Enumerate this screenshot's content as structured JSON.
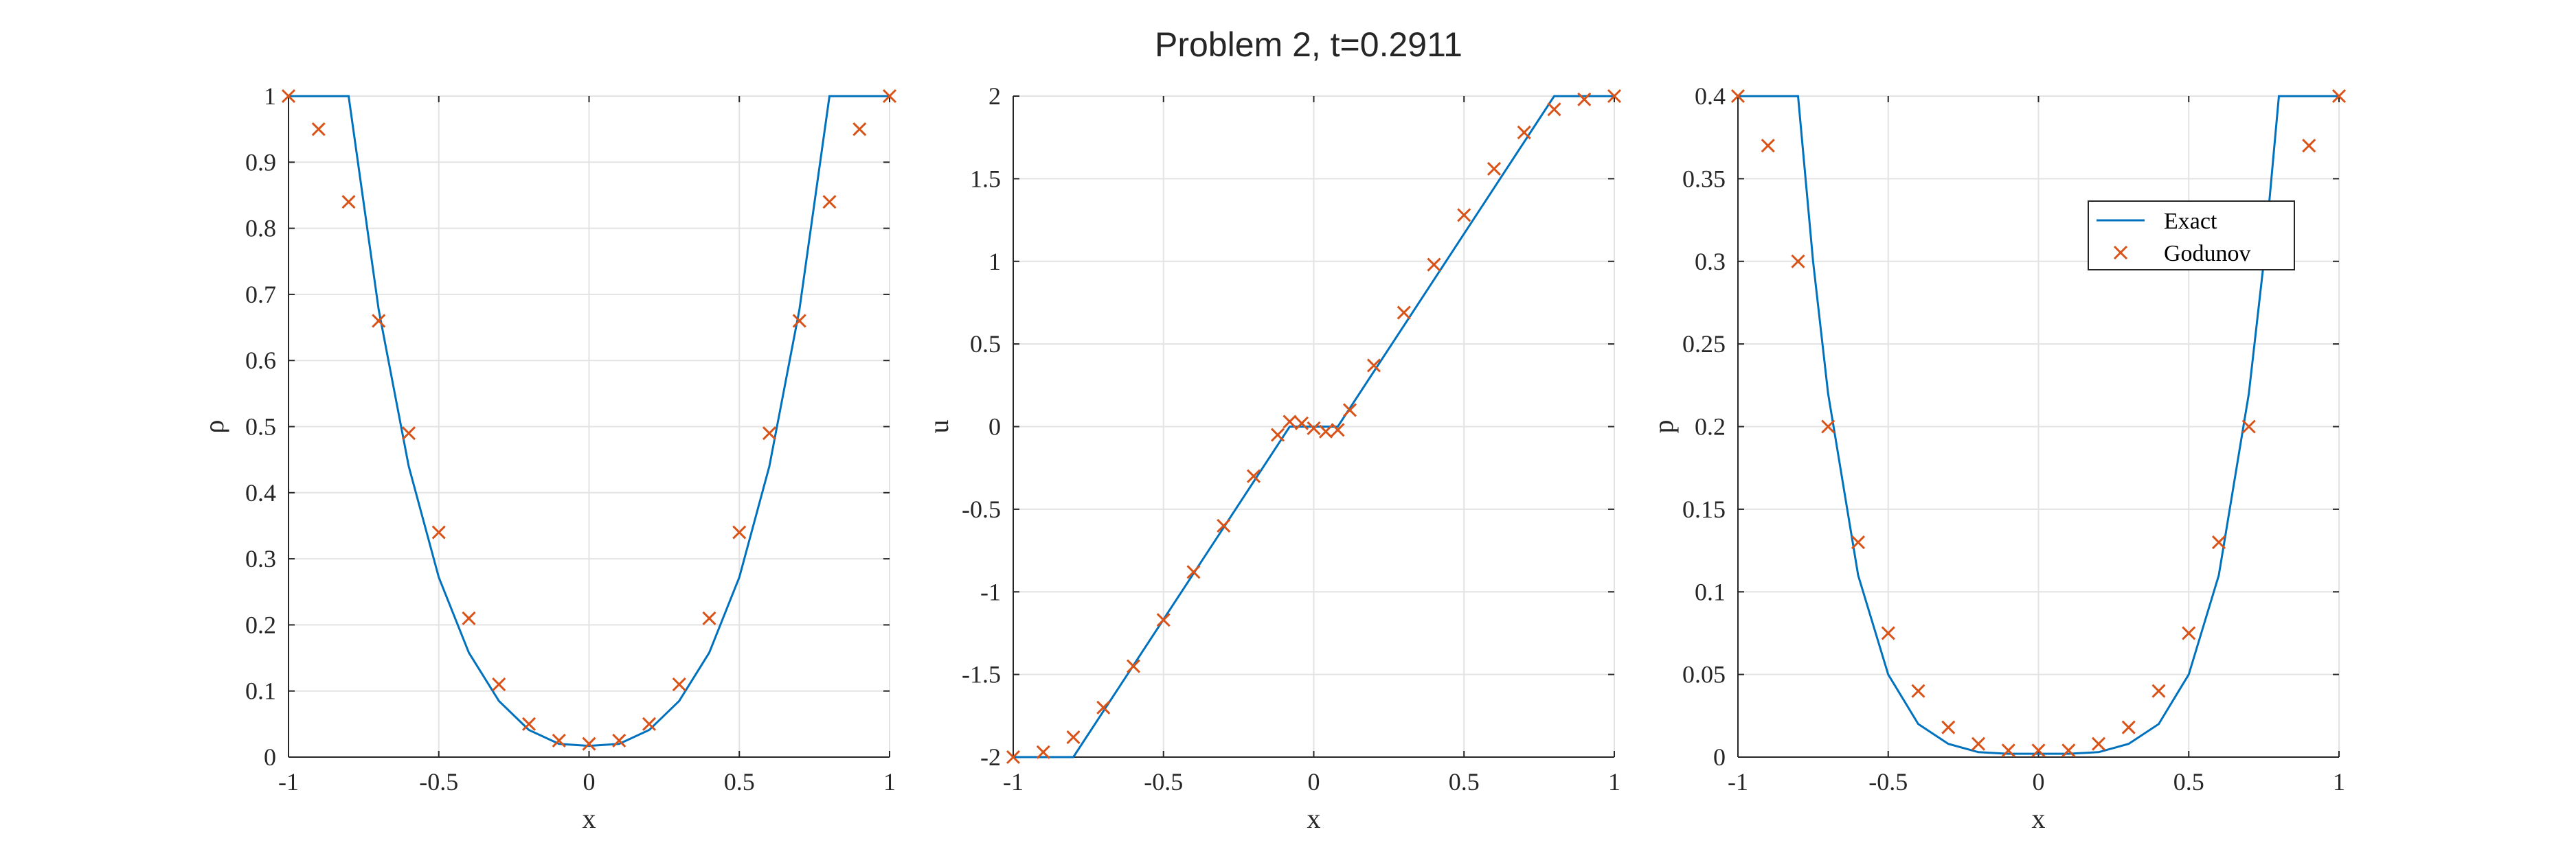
{
  "title": "Problem 2, t=0.2911",
  "colors": {
    "exact": "#0072bd",
    "godunov": "#d95319",
    "grid": "#e3e3e3",
    "axis": "#262626"
  },
  "legend": {
    "entries": [
      "Exact",
      "Godunov"
    ],
    "location": "top-right (third plot)"
  },
  "chart_data": [
    {
      "type": "line",
      "xlabel": "x",
      "ylabel": "ρ",
      "xlim": [
        -1,
        1
      ],
      "ylim": [
        0,
        1
      ],
      "xticks": [
        -1,
        -0.5,
        0,
        0.5,
        1
      ],
      "xtick_labels": [
        "-1",
        "-0.5",
        "0",
        "0.5",
        "1"
      ],
      "yticks": [
        0,
        0.1,
        0.2,
        0.3,
        0.4,
        0.5,
        0.6,
        0.7,
        0.8,
        0.9,
        1
      ],
      "ytick_labels": [
        "0",
        "0.1",
        "0.2",
        "0.3",
        "0.4",
        "0.5",
        "0.6",
        "0.7",
        "0.8",
        "0.9",
        "1"
      ],
      "grid": true,
      "legend": false,
      "series": [
        {
          "name": "Exact",
          "style": "line",
          "x": [
            -1,
            -0.8,
            -0.7,
            -0.6,
            -0.5,
            -0.4,
            -0.3,
            -0.2,
            -0.1,
            0,
            0.1,
            0.2,
            0.3,
            0.4,
            0.5,
            0.6,
            0.7,
            0.8,
            1
          ],
          "y": [
            1,
            1,
            0.677,
            0.44,
            0.272,
            0.158,
            0.085,
            0.041,
            0.02,
            0.017,
            0.02,
            0.041,
            0.085,
            0.158,
            0.272,
            0.44,
            0.677,
            1,
            1
          ]
        },
        {
          "name": "Godunov",
          "style": "marker-x",
          "x": [
            -1,
            -0.9,
            -0.8,
            -0.7,
            -0.6,
            -0.5,
            -0.4,
            -0.3,
            -0.2,
            -0.1,
            0,
            0.1,
            0.2,
            0.3,
            0.4,
            0.5,
            0.6,
            0.7,
            0.8,
            0.9,
            1
          ],
          "y": [
            1,
            0.95,
            0.84,
            0.66,
            0.49,
            0.34,
            0.21,
            0.11,
            0.05,
            0.025,
            0.02,
            0.025,
            0.05,
            0.11,
            0.21,
            0.34,
            0.49,
            0.66,
            0.84,
            0.95,
            1
          ]
        }
      ]
    },
    {
      "type": "line",
      "xlabel": "x",
      "ylabel": "u",
      "xlim": [
        -1,
        1
      ],
      "ylim": [
        -2,
        2
      ],
      "xticks": [
        -1,
        -0.5,
        0,
        0.5,
        1
      ],
      "xtick_labels": [
        "-1",
        "-0.5",
        "0",
        "0.5",
        "1"
      ],
      "yticks": [
        -2,
        -1.5,
        -1,
        -0.5,
        0,
        0.5,
        1,
        1.5,
        2
      ],
      "ytick_labels": [
        "-2",
        "-1.5",
        "-1",
        "-0.5",
        "0",
        "0.5",
        "1",
        "1.5",
        "2"
      ],
      "grid": true,
      "legend": false,
      "series": [
        {
          "name": "Exact",
          "style": "line",
          "x": [
            -1,
            -0.8,
            -0.08,
            0.08,
            0.8,
            1
          ],
          "y": [
            -2,
            -2,
            0,
            0,
            2,
            2
          ]
        },
        {
          "name": "Godunov",
          "style": "marker-x",
          "x": [
            -1,
            -0.9,
            -0.8,
            -0.7,
            -0.6,
            -0.5,
            -0.4,
            -0.3,
            -0.2,
            -0.12,
            -0.08,
            -0.04,
            0,
            0.04,
            0.08,
            0.12,
            0.2,
            0.3,
            0.4,
            0.5,
            0.6,
            0.7,
            0.8,
            0.9,
            1
          ],
          "y": [
            -2,
            -1.97,
            -1.88,
            -1.7,
            -1.45,
            -1.17,
            -0.88,
            -0.6,
            -0.3,
            -0.05,
            0.03,
            0.02,
            -0.01,
            -0.03,
            -0.02,
            0.1,
            0.37,
            0.69,
            0.98,
            1.28,
            1.56,
            1.78,
            1.92,
            1.98,
            2
          ]
        }
      ]
    },
    {
      "type": "line",
      "xlabel": "x",
      "ylabel": "p",
      "xlim": [
        -1,
        1
      ],
      "ylim": [
        0,
        0.4
      ],
      "xticks": [
        -1,
        -0.5,
        0,
        0.5,
        1
      ],
      "xtick_labels": [
        "-1",
        "-0.5",
        "0",
        "0.5",
        "1"
      ],
      "yticks": [
        0,
        0.05,
        0.1,
        0.15,
        0.2,
        0.25,
        0.3,
        0.35,
        0.4
      ],
      "ytick_labels": [
        "0",
        "0.05",
        "0.1",
        "0.15",
        "0.2",
        "0.25",
        "0.3",
        "0.35",
        "0.4"
      ],
      "grid": true,
      "legend": true,
      "series": [
        {
          "name": "Exact",
          "style": "line",
          "x": [
            -1,
            -0.8,
            -0.75,
            -0.7,
            -0.6,
            -0.5,
            -0.4,
            -0.3,
            -0.2,
            -0.1,
            0,
            0.1,
            0.2,
            0.3,
            0.4,
            0.5,
            0.6,
            0.7,
            0.75,
            0.8,
            1
          ],
          "y": [
            0.4,
            0.4,
            0.3,
            0.22,
            0.11,
            0.05,
            0.02,
            0.008,
            0.003,
            0.002,
            0.002,
            0.002,
            0.003,
            0.008,
            0.02,
            0.05,
            0.11,
            0.22,
            0.3,
            0.4,
            0.4
          ]
        },
        {
          "name": "Godunov",
          "style": "marker-x",
          "x": [
            -1,
            -0.9,
            -0.8,
            -0.7,
            -0.6,
            -0.5,
            -0.4,
            -0.3,
            -0.2,
            -0.1,
            0,
            0.1,
            0.2,
            0.3,
            0.4,
            0.5,
            0.6,
            0.7,
            0.8,
            0.9,
            1
          ],
          "y": [
            0.4,
            0.37,
            0.3,
            0.2,
            0.13,
            0.075,
            0.04,
            0.018,
            0.008,
            0.004,
            0.004,
            0.004,
            0.008,
            0.018,
            0.04,
            0.075,
            0.13,
            0.2,
            0.3,
            0.37,
            0.4
          ]
        }
      ]
    }
  ]
}
